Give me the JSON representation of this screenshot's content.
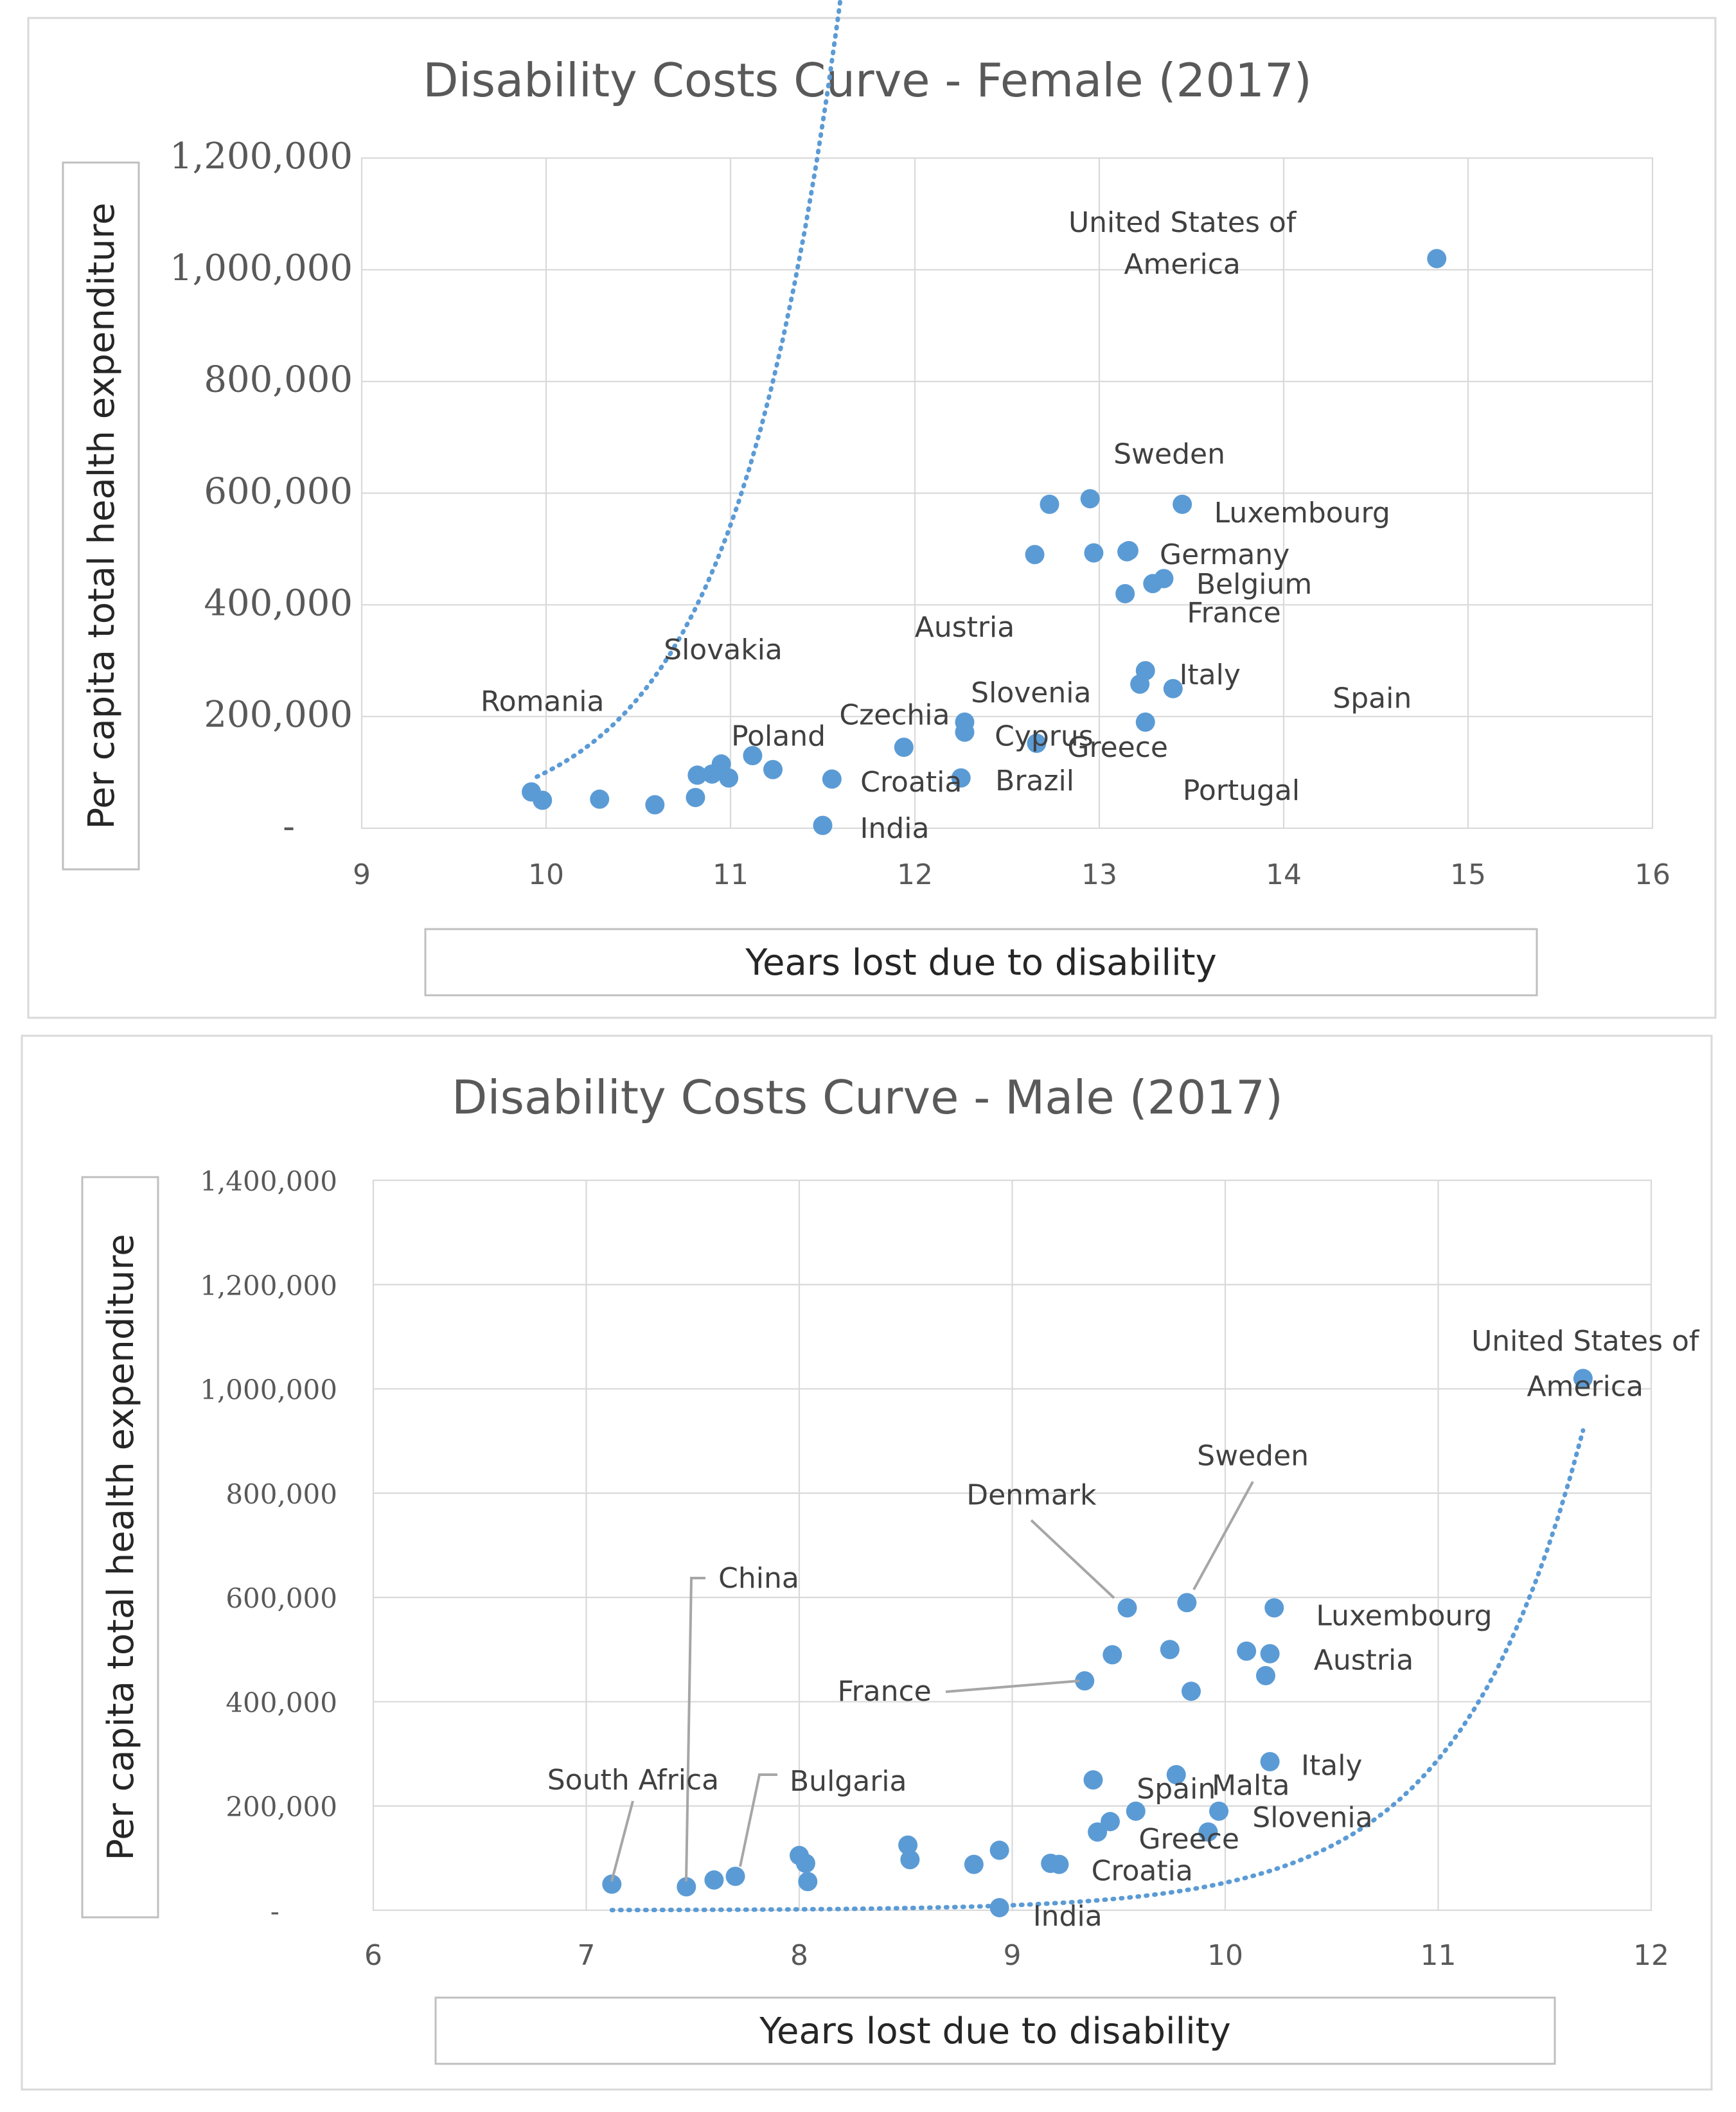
{
  "chart_data": [
    {
      "type": "scatter",
      "title": "Disability Costs Curve - Female (2017)",
      "xlabel": "Years lost due to disability",
      "ylabel": "Per capita total health expenditure",
      "xlim": [
        9,
        16
      ],
      "ylim": [
        0,
        1200000
      ],
      "x_ticks": [
        "9",
        "10",
        "11",
        "12",
        "13",
        "14",
        "15",
        "16"
      ],
      "y_ticks": [
        "-",
        "200,000",
        "400,000",
        "600,000",
        "800,000",
        "1,000,000",
        "1,200,000"
      ],
      "grid": true,
      "trendline": {
        "type": "exponential",
        "a": 0.00468,
        "b": 1.688,
        "x_range": [
          9.95,
          14.8
        ]
      },
      "points": [
        {
          "x": 14.83,
          "y": 1020000
        },
        {
          "x": 12.95,
          "y": 590000
        },
        {
          "x": 12.73,
          "y": 580000
        },
        {
          "x": 13.45,
          "y": 580000
        },
        {
          "x": 12.65,
          "y": 490000
        },
        {
          "x": 12.97,
          "y": 493000
        },
        {
          "x": 13.15,
          "y": 495000
        },
        {
          "x": 13.16,
          "y": 497000
        },
        {
          "x": 13.35,
          "y": 447000
        },
        {
          "x": 13.29,
          "y": 438000
        },
        {
          "x": 13.14,
          "y": 420000
        },
        {
          "x": 13.25,
          "y": 282000
        },
        {
          "x": 13.22,
          "y": 258000
        },
        {
          "x": 13.4,
          "y": 250000
        },
        {
          "x": 12.27,
          "y": 190000
        },
        {
          "x": 12.27,
          "y": 172000
        },
        {
          "x": 13.25,
          "y": 190000
        },
        {
          "x": 12.66,
          "y": 152000
        },
        {
          "x": 11.94,
          "y": 145000
        },
        {
          "x": 11.12,
          "y": 130000
        },
        {
          "x": 10.95,
          "y": 115000
        },
        {
          "x": 10.82,
          "y": 95000
        },
        {
          "x": 10.9,
          "y": 97000
        },
        {
          "x": 10.99,
          "y": 90000
        },
        {
          "x": 11.23,
          "y": 105000
        },
        {
          "x": 11.55,
          "y": 88000
        },
        {
          "x": 12.25,
          "y": 90000
        },
        {
          "x": 9.92,
          "y": 65000
        },
        {
          "x": 9.98,
          "y": 50000
        },
        {
          "x": 10.29,
          "y": 52000
        },
        {
          "x": 10.81,
          "y": 55000
        },
        {
          "x": 10.59,
          "y": 42000
        },
        {
          "x": 11.5,
          "y": 5000
        }
      ],
      "labels": [
        {
          "text": "United States of",
          "x": 13.45,
          "y": 1085000
        },
        {
          "text": "America",
          "x": 13.45,
          "y": 1010000
        },
        {
          "text": "Sweden",
          "x": 13.38,
          "y": 670000
        },
        {
          "text": "Luxembourg",
          "x": 14.1,
          "y": 565000
        },
        {
          "text": "Germany",
          "x": 13.68,
          "y": 490000
        },
        {
          "text": "Belgium",
          "x": 13.84,
          "y": 437000
        },
        {
          "text": "France",
          "x": 13.73,
          "y": 386000
        },
        {
          "text": "Austria",
          "x": 12.27,
          "y": 360000
        },
        {
          "text": "Italy",
          "x": 13.6,
          "y": 275000
        },
        {
          "text": "Spain",
          "x": 14.48,
          "y": 233000
        },
        {
          "text": "Slovakia",
          "x": 10.96,
          "y": 320000
        },
        {
          "text": "Romania",
          "x": 9.98,
          "y": 227000
        },
        {
          "text": "Slovenia",
          "x": 12.63,
          "y": 243000
        },
        {
          "text": "Czechia",
          "x": 11.89,
          "y": 203000
        },
        {
          "text": "Cyprus",
          "x": 12.7,
          "y": 165000
        },
        {
          "text": "Greece",
          "x": 13.1,
          "y": 145000
        },
        {
          "text": "Poland",
          "x": 11.26,
          "y": 165000
        },
        {
          "text": "Croatia",
          "x": 11.98,
          "y": 83000
        },
        {
          "text": "Brazil",
          "x": 12.65,
          "y": 85000
        },
        {
          "text": "Portugal",
          "x": 13.77,
          "y": 68000
        },
        {
          "text": "India",
          "x": 11.89,
          "y": 0
        }
      ]
    },
    {
      "type": "scatter",
      "title": "Disability Costs Curve - Male (2017)",
      "xlabel": "Years lost due to disability",
      "ylabel": "Per capita total health expenditure",
      "xlim": [
        6,
        12
      ],
      "ylim": [
        0,
        1400000
      ],
      "x_ticks": [
        "6",
        "7",
        "8",
        "9",
        "10",
        "11",
        "12"
      ],
      "y_ticks": [
        "-",
        "200,000",
        "400,000",
        "600,000",
        "800,000",
        "1,000,000",
        "1,200,000",
        "1,400,000"
      ],
      "grid": true,
      "trendline": {
        "type": "exponential",
        "a": 0.00214,
        "b": 1.702,
        "x_range": [
          7.12,
          11.68
        ]
      },
      "points": [
        {
          "x": 11.68,
          "y": 1020000
        },
        {
          "x": 9.82,
          "y": 590000
        },
        {
          "x": 9.54,
          "y": 580000
        },
        {
          "x": 10.23,
          "y": 580000
        },
        {
          "x": 9.47,
          "y": 490000
        },
        {
          "x": 9.74,
          "y": 500000
        },
        {
          "x": 10.1,
          "y": 497000
        },
        {
          "x": 10.21,
          "y": 492000
        },
        {
          "x": 10.19,
          "y": 450000
        },
        {
          "x": 9.34,
          "y": 440000
        },
        {
          "x": 9.84,
          "y": 420000
        },
        {
          "x": 10.21,
          "y": 285000
        },
        {
          "x": 9.38,
          "y": 250000
        },
        {
          "x": 9.77,
          "y": 260000
        },
        {
          "x": 9.97,
          "y": 190000
        },
        {
          "x": 9.58,
          "y": 190000
        },
        {
          "x": 9.46,
          "y": 170000
        },
        {
          "x": 9.4,
          "y": 150000
        },
        {
          "x": 9.92,
          "y": 150000
        },
        {
          "x": 8.51,
          "y": 125000
        },
        {
          "x": 8.52,
          "y": 97000
        },
        {
          "x": 8.94,
          "y": 115000
        },
        {
          "x": 8.82,
          "y": 88000
        },
        {
          "x": 9.18,
          "y": 90000
        },
        {
          "x": 9.22,
          "y": 88000
        },
        {
          "x": 8.0,
          "y": 105000
        },
        {
          "x": 8.03,
          "y": 90000
        },
        {
          "x": 8.04,
          "y": 55000
        },
        {
          "x": 7.7,
          "y": 65000
        },
        {
          "x": 7.6,
          "y": 58000
        },
        {
          "x": 7.47,
          "y": 45000
        },
        {
          "x": 7.12,
          "y": 50000
        },
        {
          "x": 8.94,
          "y": 5000
        }
      ],
      "labels": [
        {
          "text": "United States of",
          "x": 11.69,
          "y": 1092000
        },
        {
          "text": "America",
          "x": 11.69,
          "y": 1005000
        },
        {
          "text": "Sweden",
          "x": 10.13,
          "y": 872000
        },
        {
          "text": "Denmark",
          "x": 9.09,
          "y": 797000
        },
        {
          "text": "Luxembourg",
          "x": 10.84,
          "y": 565000
        },
        {
          "text": "Austria",
          "x": 10.65,
          "y": 480000
        },
        {
          "text": "China",
          "x": 7.81,
          "y": 637000
        },
        {
          "text": "France",
          "x": 8.4,
          "y": 420000
        },
        {
          "text": "South Africa",
          "x": 7.22,
          "y": 250000
        },
        {
          "text": "Bulgaria",
          "x": 8.23,
          "y": 248000
        },
        {
          "text": "Spain",
          "x": 9.77,
          "y": 233000
        },
        {
          "text": "Malta",
          "x": 10.12,
          "y": 240000
        },
        {
          "text": "Italy",
          "x": 10.5,
          "y": 278000
        },
        {
          "text": "Slovenia",
          "x": 10.41,
          "y": 178000
        },
        {
          "text": "Greece",
          "x": 9.83,
          "y": 137000
        },
        {
          "text": "Croatia",
          "x": 9.61,
          "y": 76000
        },
        {
          "text": "India",
          "x": 9.26,
          "y": -11000
        }
      ]
    }
  ]
}
